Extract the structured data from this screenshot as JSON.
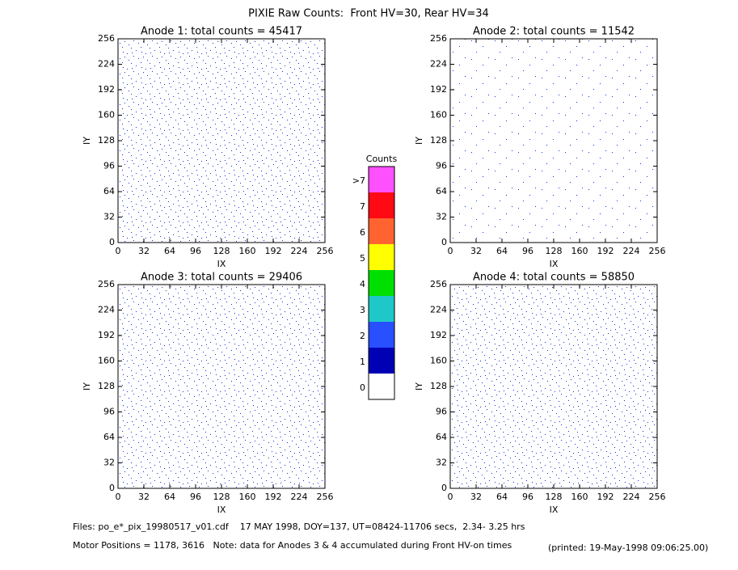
{
  "title": "PIXIE Raw Counts:  Front HV=30, Rear HV=34",
  "chart_data": [
    {
      "type": "heatmap",
      "title": "Anode 1: total counts = 45417",
      "xlabel": "IX",
      "ylabel": "IY",
      "xlim": [
        0,
        256
      ],
      "ylim": [
        0,
        256
      ],
      "xticks": [
        0,
        32,
        64,
        96,
        128,
        160,
        192,
        224,
        256
      ],
      "yticks": [
        0,
        32,
        64,
        96,
        128,
        160,
        192,
        224,
        256
      ]
    },
    {
      "type": "heatmap",
      "title": "Anode 2: total counts = 11542",
      "xlabel": "IX",
      "ylabel": "IY",
      "xlim": [
        0,
        256
      ],
      "ylim": [
        0,
        256
      ],
      "xticks": [
        0,
        32,
        64,
        96,
        128,
        160,
        192,
        224,
        256
      ],
      "yticks": [
        0,
        32,
        64,
        96,
        128,
        160,
        192,
        224,
        256
      ]
    },
    {
      "type": "heatmap",
      "title": "Anode 3: total counts = 29406",
      "xlabel": "IX",
      "ylabel": "IY",
      "xlim": [
        0,
        256
      ],
      "ylim": [
        0,
        256
      ],
      "xticks": [
        0,
        32,
        64,
        96,
        128,
        160,
        192,
        224,
        256
      ],
      "yticks": [
        0,
        32,
        64,
        96,
        128,
        160,
        192,
        224,
        256
      ]
    },
    {
      "type": "heatmap",
      "title": "Anode 4: total counts = 58850",
      "xlabel": "IX",
      "ylabel": "IY",
      "xlim": [
        0,
        256
      ],
      "ylim": [
        0,
        256
      ],
      "xticks": [
        0,
        32,
        64,
        96,
        128,
        160,
        192,
        224,
        256
      ],
      "yticks": [
        0,
        32,
        64,
        96,
        128,
        160,
        192,
        224,
        256
      ]
    }
  ],
  "colorbar": {
    "title": "Counts",
    "categories": [
      "0",
      "1",
      "2",
      "3",
      "4",
      "5",
      "6",
      "7",
      ">7"
    ],
    "colors": [
      "#ffffff",
      "#0000b4",
      "#2850ff",
      "#1ec8c8",
      "#00e000",
      "#ffff00",
      "#ff6430",
      "#ff0a14",
      "#ff50ff"
    ]
  },
  "footer": {
    "files": "Files: po_e*_pix_19980517_v01.cdf    17 MAY 1998, DOY=137, UT=08424-11706 secs,  2.34- 3.25 hrs",
    "motor": "Motor Positions = 1178, 3616   Note: data for Anodes 3 & 4 accumulated during Front HV-on times",
    "printed": "(printed: 19-May-1998 09:06:25.00)"
  }
}
